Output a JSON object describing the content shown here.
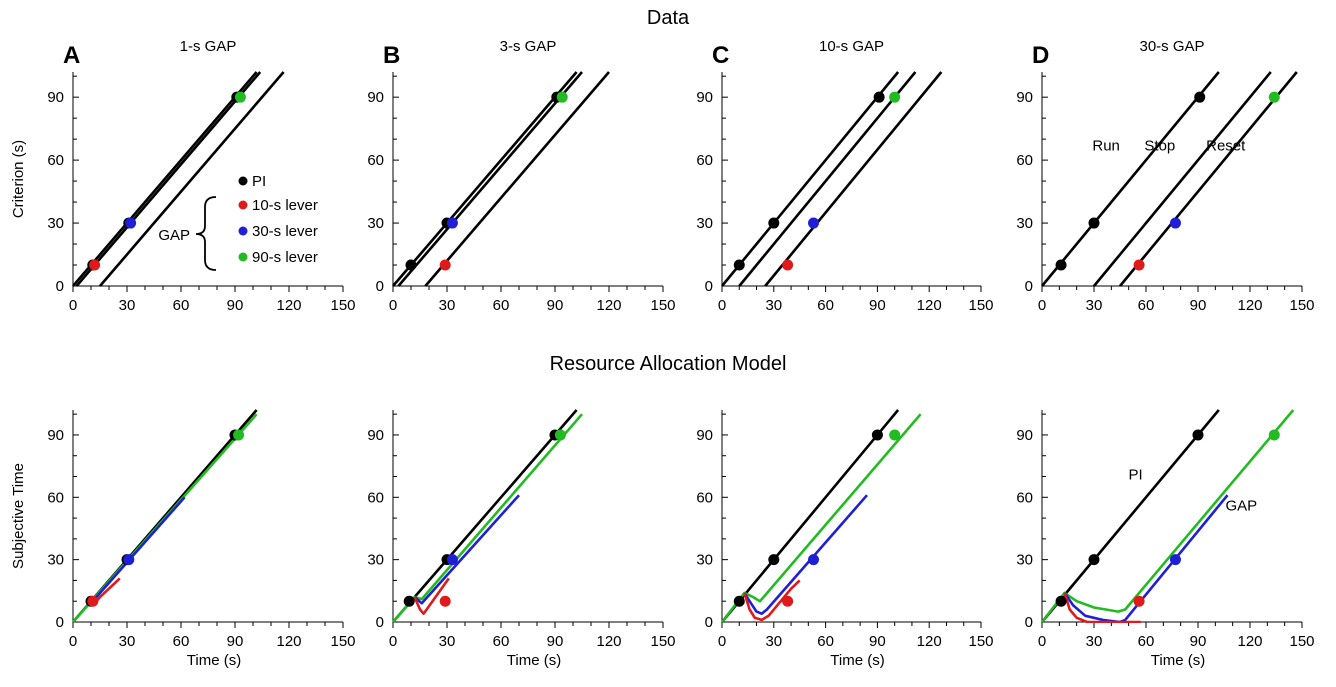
{
  "figure": {
    "top_title": "Data",
    "bottom_title": "Resource Allocation Model"
  },
  "legend": {
    "group_label": "GAP",
    "entries": [
      {
        "label": "PI",
        "color": "#000000"
      },
      {
        "label": "10-s lever",
        "color": "#e0191b"
      },
      {
        "label": "30-s lever",
        "color": "#1f1fd6"
      },
      {
        "label": "90-s lever",
        "color": "#22bb22"
      }
    ]
  },
  "chart_data": [
    {
      "type": "line",
      "panel": "A",
      "title": "1-s GAP",
      "row": "Data",
      "xlabel": "",
      "ylabel": "Criterion (s)",
      "xlim": [
        0,
        150
      ],
      "ylim": [
        0,
        100
      ],
      "xticks": [
        0,
        30,
        60,
        90,
        120,
        150
      ],
      "yticks": [
        0,
        30,
        60,
        90
      ],
      "series": [
        {
          "color": "#000000",
          "values": [
            [
              0,
              0
            ],
            [
              102,
              102
            ]
          ]
        },
        {
          "color": "#000000",
          "values": [
            [
              2,
              0
            ],
            [
              104,
              102
            ]
          ]
        },
        {
          "color": "#000000",
          "values": [
            [
              15,
              0
            ],
            [
              117,
              102
            ]
          ]
        }
      ],
      "points": [
        {
          "x": 11,
          "y": 10,
          "color": "#000000"
        },
        {
          "x": 31,
          "y": 30,
          "color": "#000000"
        },
        {
          "x": 91,
          "y": 90,
          "color": "#000000"
        },
        {
          "x": 12,
          "y": 10,
          "color": "#e0191b"
        },
        {
          "x": 32,
          "y": 30,
          "color": "#1f1fd6"
        },
        {
          "x": 93,
          "y": 90,
          "color": "#22bb22"
        }
      ],
      "annotations": []
    },
    {
      "type": "line",
      "panel": "B",
      "title": "3-s GAP",
      "row": "Data",
      "xlabel": "",
      "ylabel": "",
      "xlim": [
        0,
        150
      ],
      "ylim": [
        0,
        100
      ],
      "xticks": [
        0,
        30,
        60,
        90,
        120,
        150
      ],
      "yticks": [
        0,
        30,
        60,
        90
      ],
      "series": [
        {
          "color": "#000000",
          "values": [
            [
              0,
              0
            ],
            [
              102,
              102
            ]
          ]
        },
        {
          "color": "#000000",
          "values": [
            [
              3,
              0
            ],
            [
              105,
              102
            ]
          ]
        },
        {
          "color": "#000000",
          "values": [
            [
              18,
              0
            ],
            [
              120,
              102
            ]
          ]
        }
      ],
      "points": [
        {
          "x": 10,
          "y": 10,
          "color": "#000000"
        },
        {
          "x": 30,
          "y": 30,
          "color": "#000000"
        },
        {
          "x": 91,
          "y": 90,
          "color": "#000000"
        },
        {
          "x": 29,
          "y": 10,
          "color": "#e0191b"
        },
        {
          "x": 33,
          "y": 30,
          "color": "#1f1fd6"
        },
        {
          "x": 94,
          "y": 90,
          "color": "#22bb22"
        }
      ],
      "annotations": []
    },
    {
      "type": "line",
      "panel": "C",
      "title": "10-s GAP",
      "row": "Data",
      "xlabel": "",
      "ylabel": "",
      "xlim": [
        0,
        150
      ],
      "ylim": [
        0,
        100
      ],
      "xticks": [
        0,
        30,
        60,
        90,
        120,
        150
      ],
      "yticks": [
        0,
        30,
        60,
        90
      ],
      "series": [
        {
          "color": "#000000",
          "values": [
            [
              0,
              0
            ],
            [
              102,
              102
            ]
          ]
        },
        {
          "color": "#000000",
          "values": [
            [
              10,
              0
            ],
            [
              112,
              102
            ]
          ]
        },
        {
          "color": "#000000",
          "values": [
            [
              25,
              0
            ],
            [
              127,
              102
            ]
          ]
        }
      ],
      "points": [
        {
          "x": 10,
          "y": 10,
          "color": "#000000"
        },
        {
          "x": 30,
          "y": 30,
          "color": "#000000"
        },
        {
          "x": 91,
          "y": 90,
          "color": "#000000"
        },
        {
          "x": 38,
          "y": 10,
          "color": "#e0191b"
        },
        {
          "x": 53,
          "y": 30,
          "color": "#1f1fd6"
        },
        {
          "x": 100,
          "y": 90,
          "color": "#22bb22"
        }
      ],
      "annotations": []
    },
    {
      "type": "line",
      "panel": "D",
      "title": "30-s GAP",
      "row": "Data",
      "xlabel": "",
      "ylabel": "",
      "xlim": [
        0,
        150
      ],
      "ylim": [
        0,
        100
      ],
      "xticks": [
        0,
        30,
        60,
        90,
        120,
        150
      ],
      "yticks": [
        0,
        30,
        60,
        90
      ],
      "series": [
        {
          "color": "#000000",
          "values": [
            [
              0,
              0
            ],
            [
              102,
              102
            ]
          ]
        },
        {
          "color": "#000000",
          "values": [
            [
              30,
              0
            ],
            [
              132,
              102
            ]
          ]
        },
        {
          "color": "#000000",
          "values": [
            [
              45,
              0
            ],
            [
              147,
              102
            ]
          ]
        }
      ],
      "points": [
        {
          "x": 11,
          "y": 10,
          "color": "#000000"
        },
        {
          "x": 30,
          "y": 30,
          "color": "#000000"
        },
        {
          "x": 91,
          "y": 90,
          "color": "#000000"
        },
        {
          "x": 56,
          "y": 10,
          "color": "#e0191b"
        },
        {
          "x": 77,
          "y": 30,
          "color": "#1f1fd6"
        },
        {
          "x": 134,
          "y": 90,
          "color": "#22bb22"
        }
      ],
      "annotations": [
        {
          "text": "Run",
          "x": 37,
          "y": 67
        },
        {
          "text": "Stop",
          "x": 68,
          "y": 67
        },
        {
          "text": "Reset",
          "x": 106,
          "y": 67
        }
      ]
    },
    {
      "type": "line",
      "panel": "A",
      "title": "",
      "row": "Resource Allocation Model",
      "xlabel": "Time (s)",
      "ylabel": "Subjective Time",
      "xlim": [
        0,
        150
      ],
      "ylim": [
        0,
        100
      ],
      "xticks": [
        0,
        30,
        60,
        90,
        120,
        150
      ],
      "yticks": [
        0,
        30,
        60,
        90
      ],
      "series": [
        {
          "color": "#000000",
          "values": [
            [
              0,
              0
            ],
            [
              102,
              102
            ]
          ]
        },
        {
          "color": "#22bb22",
          "values": [
            [
              0,
              0
            ],
            [
              102,
              100
            ]
          ]
        },
        {
          "color": "#1f1fd6",
          "values": [
            [
              11,
              11
            ],
            [
              12,
              11
            ],
            [
              62,
              60
            ]
          ]
        },
        {
          "color": "#e0191b",
          "values": [
            [
              11,
              11
            ],
            [
              13,
              10
            ],
            [
              15,
              12
            ],
            [
              26,
              21
            ]
          ]
        }
      ],
      "points": [
        {
          "x": 10,
          "y": 10,
          "color": "#000000"
        },
        {
          "x": 30,
          "y": 30,
          "color": "#000000"
        },
        {
          "x": 90,
          "y": 90,
          "color": "#000000"
        },
        {
          "x": 11,
          "y": 10,
          "color": "#e0191b"
        },
        {
          "x": 31,
          "y": 30,
          "color": "#1f1fd6"
        },
        {
          "x": 92,
          "y": 90,
          "color": "#22bb22"
        }
      ],
      "annotations": []
    },
    {
      "type": "line",
      "panel": "B",
      "title": "",
      "row": "Resource Allocation Model",
      "xlabel": "Time (s)",
      "ylabel": "",
      "xlim": [
        0,
        150
      ],
      "ylim": [
        0,
        100
      ],
      "xticks": [
        0,
        30,
        60,
        90,
        120,
        150
      ],
      "yticks": [
        0,
        30,
        60,
        90
      ],
      "series": [
        {
          "color": "#000000",
          "values": [
            [
              0,
              0
            ],
            [
              102,
              102
            ]
          ]
        },
        {
          "color": "#22bb22",
          "values": [
            [
              0,
              0
            ],
            [
              12,
              12
            ],
            [
              16,
              11
            ],
            [
              105,
              100
            ]
          ]
        },
        {
          "color": "#1f1fd6",
          "values": [
            [
              12,
              12
            ],
            [
              16,
              9
            ],
            [
              70,
              61
            ]
          ]
        },
        {
          "color": "#e0191b",
          "values": [
            [
              12,
              12
            ],
            [
              15,
              6
            ],
            [
              17,
              4
            ],
            [
              31,
              21
            ]
          ]
        }
      ],
      "points": [
        {
          "x": 9,
          "y": 10,
          "color": "#000000"
        },
        {
          "x": 30,
          "y": 30,
          "color": "#000000"
        },
        {
          "x": 90,
          "y": 90,
          "color": "#000000"
        },
        {
          "x": 29,
          "y": 10,
          "color": "#e0191b"
        },
        {
          "x": 33,
          "y": 30,
          "color": "#1f1fd6"
        },
        {
          "x": 93,
          "y": 90,
          "color": "#22bb22"
        }
      ],
      "annotations": []
    },
    {
      "type": "line",
      "panel": "C",
      "title": "",
      "row": "Resource Allocation Model",
      "xlabel": "Time (s)",
      "ylabel": "",
      "xlim": [
        0,
        150
      ],
      "ylim": [
        0,
        100
      ],
      "xticks": [
        0,
        30,
        60,
        90,
        120,
        150
      ],
      "yticks": [
        0,
        30,
        60,
        90
      ],
      "series": [
        {
          "color": "#000000",
          "values": [
            [
              0,
              0
            ],
            [
              102,
              102
            ]
          ]
        },
        {
          "color": "#22bb22",
          "values": [
            [
              0,
              0
            ],
            [
              13,
              14
            ],
            [
              18,
              12
            ],
            [
              22,
              10
            ],
            [
              115,
              100
            ]
          ]
        },
        {
          "color": "#1f1fd6",
          "values": [
            [
              13,
              14
            ],
            [
              16,
              10
            ],
            [
              20,
              5
            ],
            [
              23,
              4
            ],
            [
              26,
              6
            ],
            [
              84,
              61
            ]
          ]
        },
        {
          "color": "#e0191b",
          "values": [
            [
              13,
              14
            ],
            [
              16,
              6
            ],
            [
              19,
              2
            ],
            [
              23,
              1
            ],
            [
              27,
              3
            ],
            [
              40,
              16
            ],
            [
              45,
              20
            ]
          ]
        }
      ],
      "points": [
        {
          "x": 10,
          "y": 10,
          "color": "#000000"
        },
        {
          "x": 30,
          "y": 30,
          "color": "#000000"
        },
        {
          "x": 90,
          "y": 90,
          "color": "#000000"
        },
        {
          "x": 38,
          "y": 10,
          "color": "#e0191b"
        },
        {
          "x": 53,
          "y": 30,
          "color": "#1f1fd6"
        },
        {
          "x": 100,
          "y": 90,
          "color": "#22bb22"
        }
      ],
      "annotations": []
    },
    {
      "type": "line",
      "panel": "D",
      "title": "",
      "row": "Resource Allocation Model",
      "xlabel": "Time (s)",
      "ylabel": "",
      "xlim": [
        0,
        150
      ],
      "ylim": [
        0,
        100
      ],
      "xticks": [
        0,
        30,
        60,
        90,
        120,
        150
      ],
      "yticks": [
        0,
        30,
        60,
        90
      ],
      "series": [
        {
          "color": "#000000",
          "values": [
            [
              0,
              0
            ],
            [
              102,
              102
            ]
          ]
        },
        {
          "color": "#22bb22",
          "values": [
            [
              0,
              0
            ],
            [
              13,
              14
            ],
            [
              20,
              10
            ],
            [
              30,
              7
            ],
            [
              44,
              5
            ],
            [
              48,
              6
            ],
            [
              145,
              102
            ]
          ]
        },
        {
          "color": "#1f1fd6",
          "values": [
            [
              13,
              14
            ],
            [
              18,
              8
            ],
            [
              25,
              3
            ],
            [
              35,
              1
            ],
            [
              45,
              0
            ],
            [
              48,
              1
            ],
            [
              107,
              61
            ]
          ]
        },
        {
          "color": "#e0191b",
          "values": [
            [
              13,
              14
            ],
            [
              16,
              6
            ],
            [
              20,
              2
            ],
            [
              26,
              0
            ],
            [
              57,
              0
            ]
          ]
        }
      ],
      "points": [
        {
          "x": 11,
          "y": 10,
          "color": "#000000"
        },
        {
          "x": 30,
          "y": 30,
          "color": "#000000"
        },
        {
          "x": 90,
          "y": 90,
          "color": "#000000"
        },
        {
          "x": 56,
          "y": 10,
          "color": "#e0191b"
        },
        {
          "x": 77,
          "y": 30,
          "color": "#1f1fd6"
        },
        {
          "x": 134,
          "y": 90,
          "color": "#22bb22"
        }
      ],
      "annotations": [
        {
          "text": "PI",
          "x": 54,
          "y": 71
        },
        {
          "text": "GAP",
          "x": 115,
          "y": 56
        }
      ]
    }
  ]
}
